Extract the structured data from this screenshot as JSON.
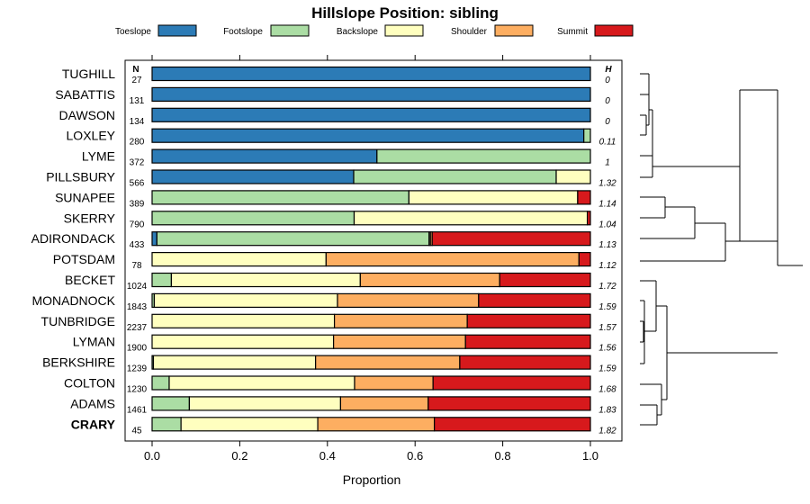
{
  "chart_data": {
    "type": "bar",
    "stacked": true,
    "orientation": "horizontal",
    "title": "Hillslope Position: sibling",
    "xlabel": "Proportion",
    "xlim": [
      0,
      1
    ],
    "xticks": [
      0,
      0.2,
      0.4,
      0.6,
      0.8,
      1
    ],
    "xtick_labels": [
      "0.0",
      "0.2",
      "0.4",
      "0.6",
      "0.8",
      "1.0"
    ],
    "n_header": "N",
    "h_header": "H",
    "legend_position": "top",
    "highlight": "CRARY",
    "series": [
      {
        "name": "Toeslope",
        "color": "#2c7bb6"
      },
      {
        "name": "Footslope",
        "color": "#abdda4"
      },
      {
        "name": "Backslope",
        "color": "#ffffbf"
      },
      {
        "name": "Shoulder",
        "color": "#fdae61"
      },
      {
        "name": "Summit",
        "color": "#d7191c"
      }
    ],
    "rows": [
      {
        "name": "TUGHILL",
        "n": "27",
        "h": "0",
        "values": [
          1.0,
          0,
          0,
          0,
          0
        ]
      },
      {
        "name": "SABATTIS",
        "n": "131",
        "h": "0",
        "values": [
          1.0,
          0,
          0,
          0,
          0
        ]
      },
      {
        "name": "DAWSON",
        "n": "134",
        "h": "0",
        "values": [
          1.0,
          0,
          0,
          0,
          0
        ]
      },
      {
        "name": "LOXLEY",
        "n": "280",
        "h": "0.11",
        "values": [
          0.985,
          0.015,
          0,
          0,
          0
        ]
      },
      {
        "name": "LYME",
        "n": "372",
        "h": "1",
        "values": [
          0.513,
          0.487,
          0,
          0,
          0
        ]
      },
      {
        "name": "PILLSBURY",
        "n": "566",
        "h": "1.32",
        "values": [
          0.46,
          0.462,
          0.078,
          0,
          0
        ]
      },
      {
        "name": "SUNAPEE",
        "n": "389",
        "h": "1.14",
        "values": [
          0,
          0.586,
          0.385,
          0,
          0.029
        ]
      },
      {
        "name": "SKERRY",
        "n": "790",
        "h": "1.04",
        "values": [
          0,
          0.461,
          0.532,
          0,
          0.007
        ]
      },
      {
        "name": "ADIRONDACK",
        "n": "433",
        "h": "1.13",
        "values": [
          0.011,
          0.621,
          0.003,
          0.004,
          0.361
        ]
      },
      {
        "name": "POTSDAM",
        "n": "78",
        "h": "1.12",
        "values": [
          0,
          0,
          0.397,
          0.577,
          0.026
        ]
      },
      {
        "name": "BECKET",
        "n": "1024",
        "h": "1.72",
        "values": [
          0,
          0.044,
          0.431,
          0.318,
          0.207
        ]
      },
      {
        "name": "MONADNOCK",
        "n": "1843",
        "h": "1.59",
        "values": [
          0,
          0.005,
          0.418,
          0.322,
          0.255
        ]
      },
      {
        "name": "TUNBRIDGE",
        "n": "2237",
        "h": "1.57",
        "values": [
          0,
          0,
          0.416,
          0.303,
          0.281
        ]
      },
      {
        "name": "LYMAN",
        "n": "1900",
        "h": "1.56",
        "values": [
          0,
          0,
          0.414,
          0.301,
          0.285
        ]
      },
      {
        "name": "BERKSHIRE",
        "n": "1239",
        "h": "1.59",
        "values": [
          0,
          0.003,
          0.37,
          0.329,
          0.298
        ]
      },
      {
        "name": "COLTON",
        "n": "1230",
        "h": "1.68",
        "values": [
          0,
          0.039,
          0.423,
          0.179,
          0.359
        ]
      },
      {
        "name": "ADAMS",
        "n": "1461",
        "h": "1.83",
        "values": [
          0,
          0.085,
          0.345,
          0.2,
          0.37
        ]
      },
      {
        "name": "CRARY",
        "n": "45",
        "h": "1.82",
        "values": [
          0,
          0.066,
          0.312,
          0.266,
          0.356
        ]
      }
    ]
  }
}
